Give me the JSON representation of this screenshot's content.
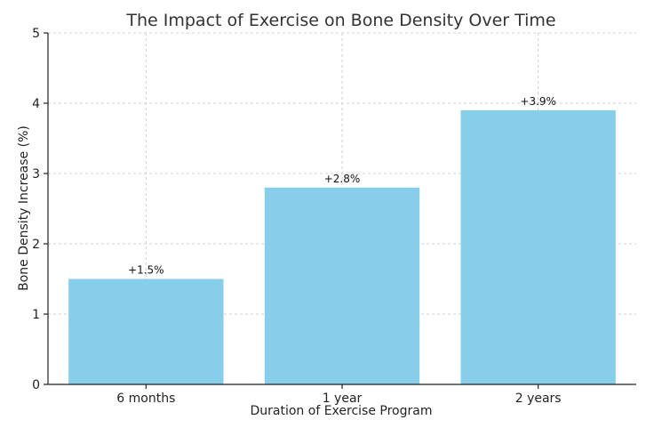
{
  "chart_data": {
    "type": "bar",
    "title": "The Impact of Exercise on Bone Density Over Time",
    "xlabel": "Duration of Exercise Program",
    "ylabel": "Bone Density Increase (%)",
    "categories": [
      "6 months",
      "1 year",
      "2 years"
    ],
    "values": [
      1.5,
      2.8,
      3.9
    ],
    "data_labels": [
      "+1.5%",
      "+2.8%",
      "+3.9%"
    ],
    "ylim": [
      0,
      5
    ],
    "yticks": [
      0,
      1,
      2,
      3,
      4,
      5
    ],
    "grid": true,
    "bar_color": "#87CEEB"
  }
}
